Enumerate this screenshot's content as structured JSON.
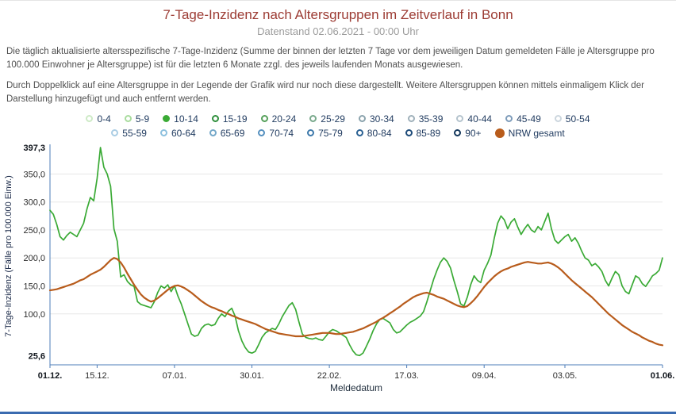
{
  "header": {
    "title": "7-Tage-Inzidenz nach Altersgruppen im Zeitverlauf in Bonn",
    "subtitle": "Datenstand 02.06.2021 - 00:00 Uhr"
  },
  "description": {
    "paragraph1": "Die täglich aktualisierte altersspezifische 7-Tage-Inzidenz (Summe der binnen der letzten 7 Tage vor dem jeweiligen Datum gemeldeten Fälle je Altersgruppe pro 100.000 Einwohner je Altersgruppe) ist für die letzten 6 Monate zzgl. des jeweils laufenden Monats ausgewiesen.",
    "paragraph2": "Durch Doppelklick auf eine Altersgruppe in der Legende der Grafik wird nur noch diese dargestellt. Weitere Altersgruppen können mittels einmaligem Klick der Darstellung hinzugefügt und auch entfernt werden."
  },
  "legend": {
    "rows": [
      [
        {
          "label": "0-4",
          "color": "#cdeac6",
          "filled": false
        },
        {
          "label": "5-9",
          "color": "#a9dc9e",
          "filled": false
        },
        {
          "label": "10-14",
          "color": "#3aaa35",
          "filled": true
        },
        {
          "label": "15-19",
          "color": "#2f8f3c",
          "filled": false
        },
        {
          "label": "20-24",
          "color": "#55a05a",
          "filled": false
        },
        {
          "label": "25-29",
          "color": "#79a98c",
          "filled": false
        },
        {
          "label": "30-34",
          "color": "#8ba3ad",
          "filled": false
        },
        {
          "label": "35-39",
          "color": "#9fb0ba",
          "filled": false
        },
        {
          "label": "40-44",
          "color": "#b4c3cd",
          "filled": false
        },
        {
          "label": "45-49",
          "color": "#7e9cba",
          "filled": false
        },
        {
          "label": "50-54",
          "color": "#ccd6de",
          "filled": false
        }
      ],
      [
        {
          "label": "55-59",
          "color": "#aacde4",
          "filled": false
        },
        {
          "label": "60-64",
          "color": "#8cc0de",
          "filled": false
        },
        {
          "label": "65-69",
          "color": "#74a8c9",
          "filled": false
        },
        {
          "label": "70-74",
          "color": "#5590bf",
          "filled": false
        },
        {
          "label": "75-79",
          "color": "#3d79ab",
          "filled": false
        },
        {
          "label": "80-84",
          "color": "#2b6193",
          "filled": false
        },
        {
          "label": "85-89",
          "color": "#1d4b79",
          "filled": false
        },
        {
          "label": "90+",
          "color": "#12365b",
          "filled": false
        },
        {
          "label": "NRW gesamt",
          "color": "#b85c1c",
          "filled": true,
          "big": true
        }
      ]
    ]
  },
  "chart_data": {
    "type": "line",
    "title": "7-Tage-Inzidenz nach Altersgruppen im Zeitverlauf in Bonn",
    "subtitle": "Datenstand 02.06.2021 - 00:00 Uhr",
    "xlabel": "Meldedatum",
    "ylabel": "7-Tage-Inzidenz (Fälle pro 100.000 Einw.)",
    "ylim": [
      9,
      397.3
    ],
    "days_total": 182,
    "x_range": [
      "01.12.2020",
      "01.06.2021"
    ],
    "grid_color": "#e7e7e7",
    "axis_color": "#4d7eb8",
    "y_ticks": [
      {
        "label": "397,3",
        "value": 397.3,
        "bold": true,
        "grid": false
      },
      {
        "label": "350,0",
        "value": 350,
        "bold": false,
        "grid": true
      },
      {
        "label": "300,0",
        "value": 300,
        "bold": false,
        "grid": true
      },
      {
        "label": "250,0",
        "value": 250,
        "bold": false,
        "grid": true
      },
      {
        "label": "200,0",
        "value": 200,
        "bold": false,
        "grid": true
      },
      {
        "label": "150,0",
        "value": 150,
        "bold": false,
        "grid": true
      },
      {
        "label": "100,0",
        "value": 100,
        "bold": false,
        "grid": true
      },
      {
        "label": "25,6",
        "value": 25.6,
        "bold": true,
        "grid": false
      }
    ],
    "x_ticks": [
      {
        "label": "01.12.",
        "day": 0,
        "bold": true
      },
      {
        "label": "15.12.",
        "day": 14,
        "bold": false
      },
      {
        "label": "07.01.",
        "day": 37,
        "bold": false
      },
      {
        "label": "30.01.",
        "day": 60,
        "bold": false
      },
      {
        "label": "22.02.",
        "day": 83,
        "bold": false
      },
      {
        "label": "17.03.",
        "day": 106,
        "bold": false
      },
      {
        "label": "09.04.",
        "day": 129,
        "bold": false
      },
      {
        "label": "03.05.",
        "day": 153,
        "bold": false
      },
      {
        "label": "01.06.",
        "day": 182,
        "bold": true
      }
    ],
    "series": [
      {
        "name": "10-14",
        "color": "#3aaa35",
        "stroke_width": 1.7,
        "values": [
          285,
          278,
          260,
          238,
          232,
          240,
          246,
          242,
          238,
          250,
          262,
          288,
          308,
          302,
          342,
          397.3,
          362,
          350,
          328,
          252,
          230,
          166,
          170,
          158,
          152,
          149,
          122,
          117,
          115,
          113,
          111,
          122,
          138,
          150,
          146,
          152,
          140,
          150,
          132,
          118,
          100,
          82,
          64,
          60,
          62,
          74,
          80,
          82,
          79,
          81,
          92,
          100,
          95,
          105,
          110,
          96,
          70,
          52,
          40,
          32,
          30,
          33,
          45,
          58,
          66,
          70,
          74,
          72,
          82,
          95,
          105,
          115,
          120,
          108,
          85,
          64,
          58,
          56,
          55,
          57,
          54,
          53,
          60,
          68,
          72,
          70,
          66,
          62,
          58,
          45,
          34,
          27,
          25.6,
          30,
          42,
          55,
          70,
          82,
          90,
          92,
          88,
          84,
          72,
          66,
          68,
          74,
          80,
          85,
          88,
          92,
          96,
          104,
          122,
          142,
          162,
          178,
          192,
          200,
          194,
          182,
          160,
          140,
          118,
          114,
          130,
          152,
          168,
          160,
          156,
          178,
          190,
          205,
          235,
          262,
          275,
          268,
          252,
          264,
          270,
          255,
          242,
          252,
          260,
          250,
          246,
          256,
          250,
          265,
          280,
          252,
          232,
          226,
          232,
          238,
          242,
          230,
          236,
          226,
          212,
          200,
          196,
          186,
          190,
          184,
          176,
          160,
          150,
          164,
          176,
          170,
          150,
          140,
          136,
          152,
          168,
          164,
          154,
          149,
          158,
          168,
          172,
          178,
          200
        ]
      },
      {
        "name": "NRW gesamt",
        "color": "#b85c1c",
        "stroke_width": 2.2,
        "values": [
          142,
          143,
          144,
          146,
          148,
          150,
          152,
          154,
          157,
          160,
          162,
          166,
          170,
          173,
          176,
          179,
          184,
          190,
          196,
          200,
          198,
          192,
          183,
          172,
          162,
          152,
          143,
          135,
          129,
          125,
          122,
          124,
          128,
          133,
          138,
          143,
          147,
          150,
          151,
          149,
          146,
          142,
          138,
          133,
          128,
          123,
          119,
          115,
          112,
          110,
          107,
          105,
          102,
          100,
          97,
          95,
          92,
          90,
          88,
          86,
          84,
          82,
          79,
          76,
          73,
          71,
          69,
          67,
          65,
          64,
          63,
          62,
          61,
          60,
          60,
          60,
          61,
          62,
          63,
          64,
          65,
          66,
          66,
          66,
          65,
          64,
          64,
          65,
          66,
          67,
          68,
          70,
          72,
          74,
          77,
          80,
          83,
          86,
          90,
          93,
          97,
          101,
          105,
          109,
          113,
          118,
          122,
          126,
          130,
          133,
          135,
          137,
          138,
          136,
          134,
          131,
          129,
          127,
          124,
          121,
          118,
          115,
          113,
          112,
          114,
          119,
          125,
          132,
          140,
          148,
          155,
          161,
          167,
          172,
          176,
          179,
          181,
          184,
          186,
          188,
          190,
          192,
          193,
          192,
          191,
          190,
          190,
          191,
          192,
          190,
          187,
          183,
          178,
          172,
          166,
          160,
          155,
          150,
          145,
          140,
          135,
          130,
          124,
          118,
          112,
          106,
          100,
          95,
          90,
          85,
          80,
          76,
          72,
          68,
          65,
          62,
          58,
          55,
          52,
          50,
          47,
          45,
          44
        ]
      }
    ]
  }
}
